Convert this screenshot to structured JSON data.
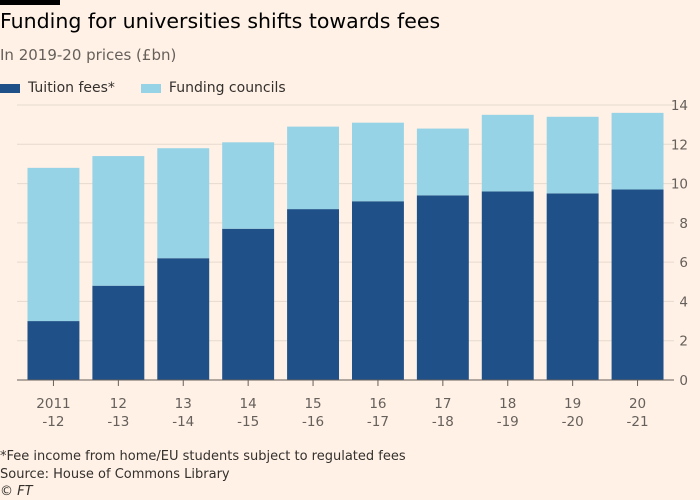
{
  "header": {
    "title": "Funding for universities shifts towards fees",
    "subtitle": "In 2019-20 prices (£bn)"
  },
  "legend": {
    "items": [
      {
        "label": "Tuition fees*",
        "color": "#1f5188"
      },
      {
        "label": "Funding councils",
        "color": "#97d3e6"
      }
    ]
  },
  "footer": {
    "footnote": "*Fee income from home/EU students subject to regulated fees",
    "source": "Source: House of Commons Library",
    "brand": "© FT"
  },
  "chart_data": {
    "type": "bar",
    "stacked": true,
    "categories": [
      [
        "2011",
        "-12"
      ],
      [
        "12",
        "-13"
      ],
      [
        "13",
        "-14"
      ],
      [
        "14",
        "-15"
      ],
      [
        "15",
        "-16"
      ],
      [
        "16",
        "-17"
      ],
      [
        "17",
        "-18"
      ],
      [
        "18",
        "-19"
      ],
      [
        "19",
        "-20"
      ],
      [
        "20",
        "-21"
      ]
    ],
    "series": [
      {
        "name": "Tuition fees*",
        "color": "#1f5188",
        "values": [
          3.0,
          4.8,
          6.2,
          7.7,
          8.7,
          9.1,
          9.4,
          9.6,
          9.5,
          9.7
        ]
      },
      {
        "name": "Funding councils",
        "color": "#97d3e6",
        "values": [
          7.8,
          6.6,
          5.6,
          4.4,
          4.2,
          4.0,
          3.4,
          3.9,
          3.9,
          3.9
        ]
      }
    ],
    "ylim": [
      0,
      14
    ],
    "yticks": [
      0,
      2,
      4,
      6,
      8,
      10,
      12,
      14
    ],
    "y_axis_side": "right",
    "grid": true
  }
}
